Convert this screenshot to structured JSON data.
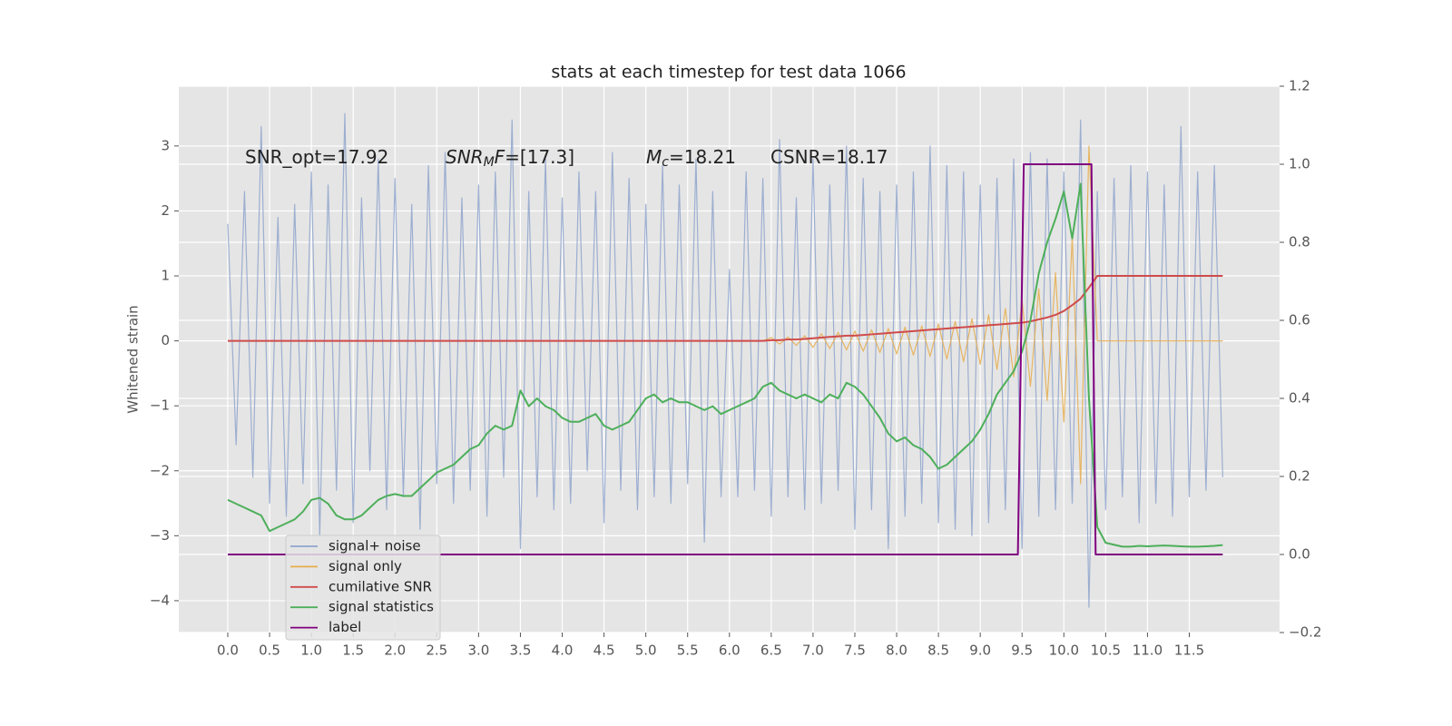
{
  "chart_data": {
    "type": "line",
    "title": "stats at each timestep for test data 1066",
    "ylabel": "Whitened strain",
    "annotations": [
      [
        "SNR_opt=17.92"
      ],
      [
        "SNR",
        "M",
        "F",
        "=[17.3]"
      ],
      [
        "M",
        "c",
        "=18.21"
      ],
      [
        "CSNR=18.17"
      ]
    ],
    "xlim": [
      -0.586,
      12.58
    ],
    "ylim": [
      -4.49,
      3.92
    ],
    "y2lim": [
      -0.2,
      1.2
    ],
    "grid": true,
    "legend": "lower left",
    "xticks": [
      {
        "value": 0,
        "label": "0.0"
      },
      0.5,
      {
        "value": 1,
        "label": "1.0"
      },
      1.5,
      {
        "value": 2,
        "label": "2.0"
      },
      2.5,
      {
        "value": 3,
        "label": "3.0"
      },
      3.5,
      {
        "value": 4,
        "label": "4.0"
      },
      4.5,
      {
        "value": 5,
        "label": "5.0"
      },
      5.5,
      {
        "value": 6,
        "label": "6.0"
      },
      6.5,
      {
        "value": 7,
        "label": "7.0"
      },
      7.5,
      {
        "value": 8,
        "label": "8.0"
      },
      8.5,
      {
        "value": 9,
        "label": "9.0"
      },
      9.5,
      {
        "value": 10,
        "label": "10.0"
      },
      10.5,
      {
        "value": 11,
        "label": "11.0"
      },
      11.5
    ],
    "yticks": [
      {
        "value": -4,
        "label": "−4"
      },
      {
        "value": -3,
        "label": "−3"
      },
      {
        "value": -2,
        "label": "−2"
      },
      {
        "value": -1,
        "label": "−1"
      },
      0,
      1,
      2,
      3
    ],
    "y2ticks": [
      {
        "value": -0.2,
        "label": "−0.2"
      },
      {
        "value": 0,
        "label": "0.0"
      },
      0.2,
      0.4,
      0.6,
      0.8,
      {
        "value": 1,
        "label": "1.0"
      },
      1.2
    ],
    "x": [
      0,
      0.1,
      0.2,
      0.3,
      0.4,
      0.5,
      0.6,
      0.7,
      0.8,
      0.9,
      1,
      1.1,
      1.2,
      1.3,
      1.4,
      1.5,
      1.6,
      1.7,
      1.8,
      1.9,
      2,
      2.1,
      2.2,
      2.3,
      2.4,
      2.5,
      2.6,
      2.7,
      2.8,
      2.9,
      3,
      3.1,
      3.2,
      3.3,
      3.4,
      3.5,
      3.6,
      3.7,
      3.8,
      3.9,
      4,
      4.1,
      4.2,
      4.3,
      4.4,
      4.5,
      4.6,
      4.7,
      4.8,
      4.9,
      5,
      5.1,
      5.2,
      5.3,
      5.4,
      5.5,
      5.6,
      5.7,
      5.8,
      5.9,
      6,
      6.1,
      6.2,
      6.3,
      6.4,
      6.5,
      6.6,
      6.7,
      6.8,
      6.9,
      7,
      7.1,
      7.2,
      7.3,
      7.4,
      7.5,
      7.6,
      7.7,
      7.8,
      7.9,
      8,
      8.1,
      8.2,
      8.3,
      8.4,
      8.5,
      8.6,
      8.7,
      8.8,
      8.9,
      9,
      9.1,
      9.2,
      9.3,
      9.4,
      9.5,
      9.6,
      9.7,
      9.8,
      9.9,
      10,
      10.1,
      10.2,
      10.3,
      10.4,
      10.5,
      10.6,
      10.7,
      10.8,
      10.9,
      11,
      11.1,
      11.2,
      11.3,
      11.4,
      11.5,
      11.6,
      11.7,
      11.8,
      11.9
    ],
    "series": [
      {
        "name": "signal+ noise",
        "color": "#8fa5cc",
        "values": [
          1.8,
          -1.6,
          2.3,
          -2.1,
          3.3,
          -2.5,
          1.9,
          -2.7,
          2.1,
          -2.2,
          2.6,
          -3.0,
          2.4,
          -2.3,
          3.5,
          -2.8,
          2.2,
          -2.0,
          2.8,
          -2.6,
          2.5,
          -2.4,
          2.1,
          -2.9,
          2.7,
          -2.2,
          2.9,
          -2.5,
          2.2,
          -2.3,
          2.4,
          -2.7,
          2.6,
          -2.1,
          3.4,
          -3.2,
          2.3,
          -2.4,
          2.8,
          -2.6,
          2.2,
          -2.5,
          2.6,
          -2.0,
          2.3,
          -2.8,
          2.9,
          -2.3,
          2.5,
          -2.6,
          2.1,
          -2.4,
          2.7,
          -2.5,
          2.4,
          -2.2,
          2.8,
          -3.1,
          2.3,
          -2.4,
          1.1,
          -2.4,
          2.6,
          -2.3,
          2.5,
          -2.7,
          3.1,
          -2.4,
          2.2,
          -2.6,
          2.8,
          -2.5,
          2.4,
          -2.3,
          3.0,
          -2.9,
          2.5,
          -2.6,
          2.3,
          -3.2,
          2.4,
          -2.7,
          2.6,
          -2.5,
          3.0,
          -2.8,
          2.7,
          -2.9,
          2.6,
          -3.0,
          2.4,
          -2.8,
          2.5,
          -2.6,
          2.8,
          -3.2,
          2.9,
          -2.7,
          2.8,
          -2.6,
          2.6,
          -2.5,
          3.4,
          -4.1,
          2.3,
          -2.6,
          2.5,
          -2.4,
          2.7,
          -2.8,
          2.6,
          -2.5,
          2.4,
          -2.7,
          3.3,
          -2.4,
          2.6,
          -2.3,
          2.7,
          -2.1
        ]
      },
      {
        "name": "signal only",
        "color": "#e6ad4c",
        "values": [
          0,
          0,
          0,
          0,
          0,
          0,
          0,
          0,
          0,
          0,
          0,
          0,
          0,
          0,
          0,
          0,
          0,
          0,
          0,
          0,
          0,
          0,
          0,
          0,
          0,
          0,
          0,
          0,
          0,
          0,
          0,
          0,
          0,
          0,
          0,
          0,
          0,
          0,
          0,
          0,
          0,
          0,
          0,
          0,
          0,
          0,
          0,
          0,
          0,
          0,
          0,
          0,
          0,
          0,
          0,
          0,
          0,
          0,
          0,
          0,
          0,
          0,
          0,
          0,
          0,
          0.05,
          -0.05,
          0.06,
          -0.07,
          0.08,
          -0.1,
          0.11,
          -0.12,
          0.13,
          -0.14,
          0.15,
          -0.16,
          0.17,
          -0.18,
          0.19,
          -0.2,
          0.21,
          -0.22,
          0.23,
          -0.24,
          0.26,
          -0.28,
          0.3,
          -0.32,
          0.34,
          -0.36,
          0.4,
          -0.44,
          0.5,
          -0.55,
          0.62,
          -0.7,
          0.8,
          -0.92,
          1.05,
          -1.25,
          1.6,
          -2.2,
          3.0,
          0,
          0,
          0,
          0,
          0,
          0,
          0,
          0,
          0,
          0,
          0,
          0,
          0,
          0,
          0,
          0
        ]
      },
      {
        "name": "cumilative SNR",
        "color": "#cf4b4b",
        "values": [
          0,
          0,
          0,
          0,
          0,
          0,
          0,
          0,
          0,
          0,
          0,
          0,
          0,
          0,
          0,
          0,
          0,
          0,
          0,
          0,
          0,
          0,
          0,
          0,
          0,
          0,
          0,
          0,
          0,
          0,
          0,
          0,
          0,
          0,
          0,
          0,
          0,
          0,
          0,
          0,
          0,
          0,
          0,
          0,
          0,
          0,
          0,
          0,
          0,
          0,
          0,
          0,
          0,
          0,
          0,
          0,
          0,
          0,
          0,
          0,
          0,
          0,
          0,
          0,
          0,
          0.01,
          0.01,
          0.02,
          0.02,
          0.03,
          0.04,
          0.05,
          0.06,
          0.07,
          0.08,
          0.08,
          0.09,
          0.1,
          0.11,
          0.12,
          0.13,
          0.14,
          0.15,
          0.16,
          0.17,
          0.18,
          0.19,
          0.2,
          0.21,
          0.22,
          0.23,
          0.24,
          0.25,
          0.26,
          0.27,
          0.28,
          0.3,
          0.33,
          0.36,
          0.4,
          0.46,
          0.55,
          0.65,
          0.82,
          1,
          1,
          1,
          1,
          1,
          1,
          1,
          1,
          1,
          1,
          1,
          1,
          1,
          1,
          1,
          1
        ]
      },
      {
        "name": "signal statistics",
        "color": "#4daf5a",
        "axis": "y2",
        "values": [
          0.14,
          0.13,
          0.12,
          0.11,
          0.1,
          0.06,
          0.07,
          0.08,
          0.09,
          0.11,
          0.14,
          0.145,
          0.13,
          0.1,
          0.09,
          0.09,
          0.1,
          0.12,
          0.14,
          0.15,
          0.155,
          0.15,
          0.15,
          0.17,
          0.19,
          0.21,
          0.22,
          0.23,
          0.25,
          0.27,
          0.28,
          0.31,
          0.33,
          0.32,
          0.33,
          0.42,
          0.38,
          0.4,
          0.38,
          0.37,
          0.35,
          0.34,
          0.34,
          0.35,
          0.36,
          0.33,
          0.32,
          0.33,
          0.34,
          0.37,
          0.4,
          0.41,
          0.39,
          0.4,
          0.39,
          0.39,
          0.38,
          0.37,
          0.38,
          0.36,
          0.37,
          0.38,
          0.39,
          0.4,
          0.43,
          0.44,
          0.42,
          0.41,
          0.4,
          0.41,
          0.4,
          0.39,
          0.41,
          0.4,
          0.44,
          0.43,
          0.41,
          0.38,
          0.35,
          0.31,
          0.29,
          0.3,
          0.28,
          0.27,
          0.25,
          0.22,
          0.23,
          0.25,
          0.27,
          0.29,
          0.32,
          0.36,
          0.41,
          0.44,
          0.47,
          0.52,
          0.6,
          0.72,
          0.8,
          0.86,
          0.93,
          0.81,
          0.95,
          0.4,
          0.07,
          0.03,
          0.025,
          0.02,
          0.02,
          0.022,
          0.021,
          0.022,
          0.023,
          0.022,
          0.021,
          0.02,
          0.02,
          0.021,
          0.022,
          0.024
        ]
      },
      {
        "name": "label",
        "color": "#800080",
        "axis": "y2",
        "x": [
          0,
          9.45,
          9.52,
          10.33,
          10.38,
          11.9
        ],
        "values": [
          0,
          0,
          1,
          1,
          0,
          0
        ]
      }
    ]
  }
}
